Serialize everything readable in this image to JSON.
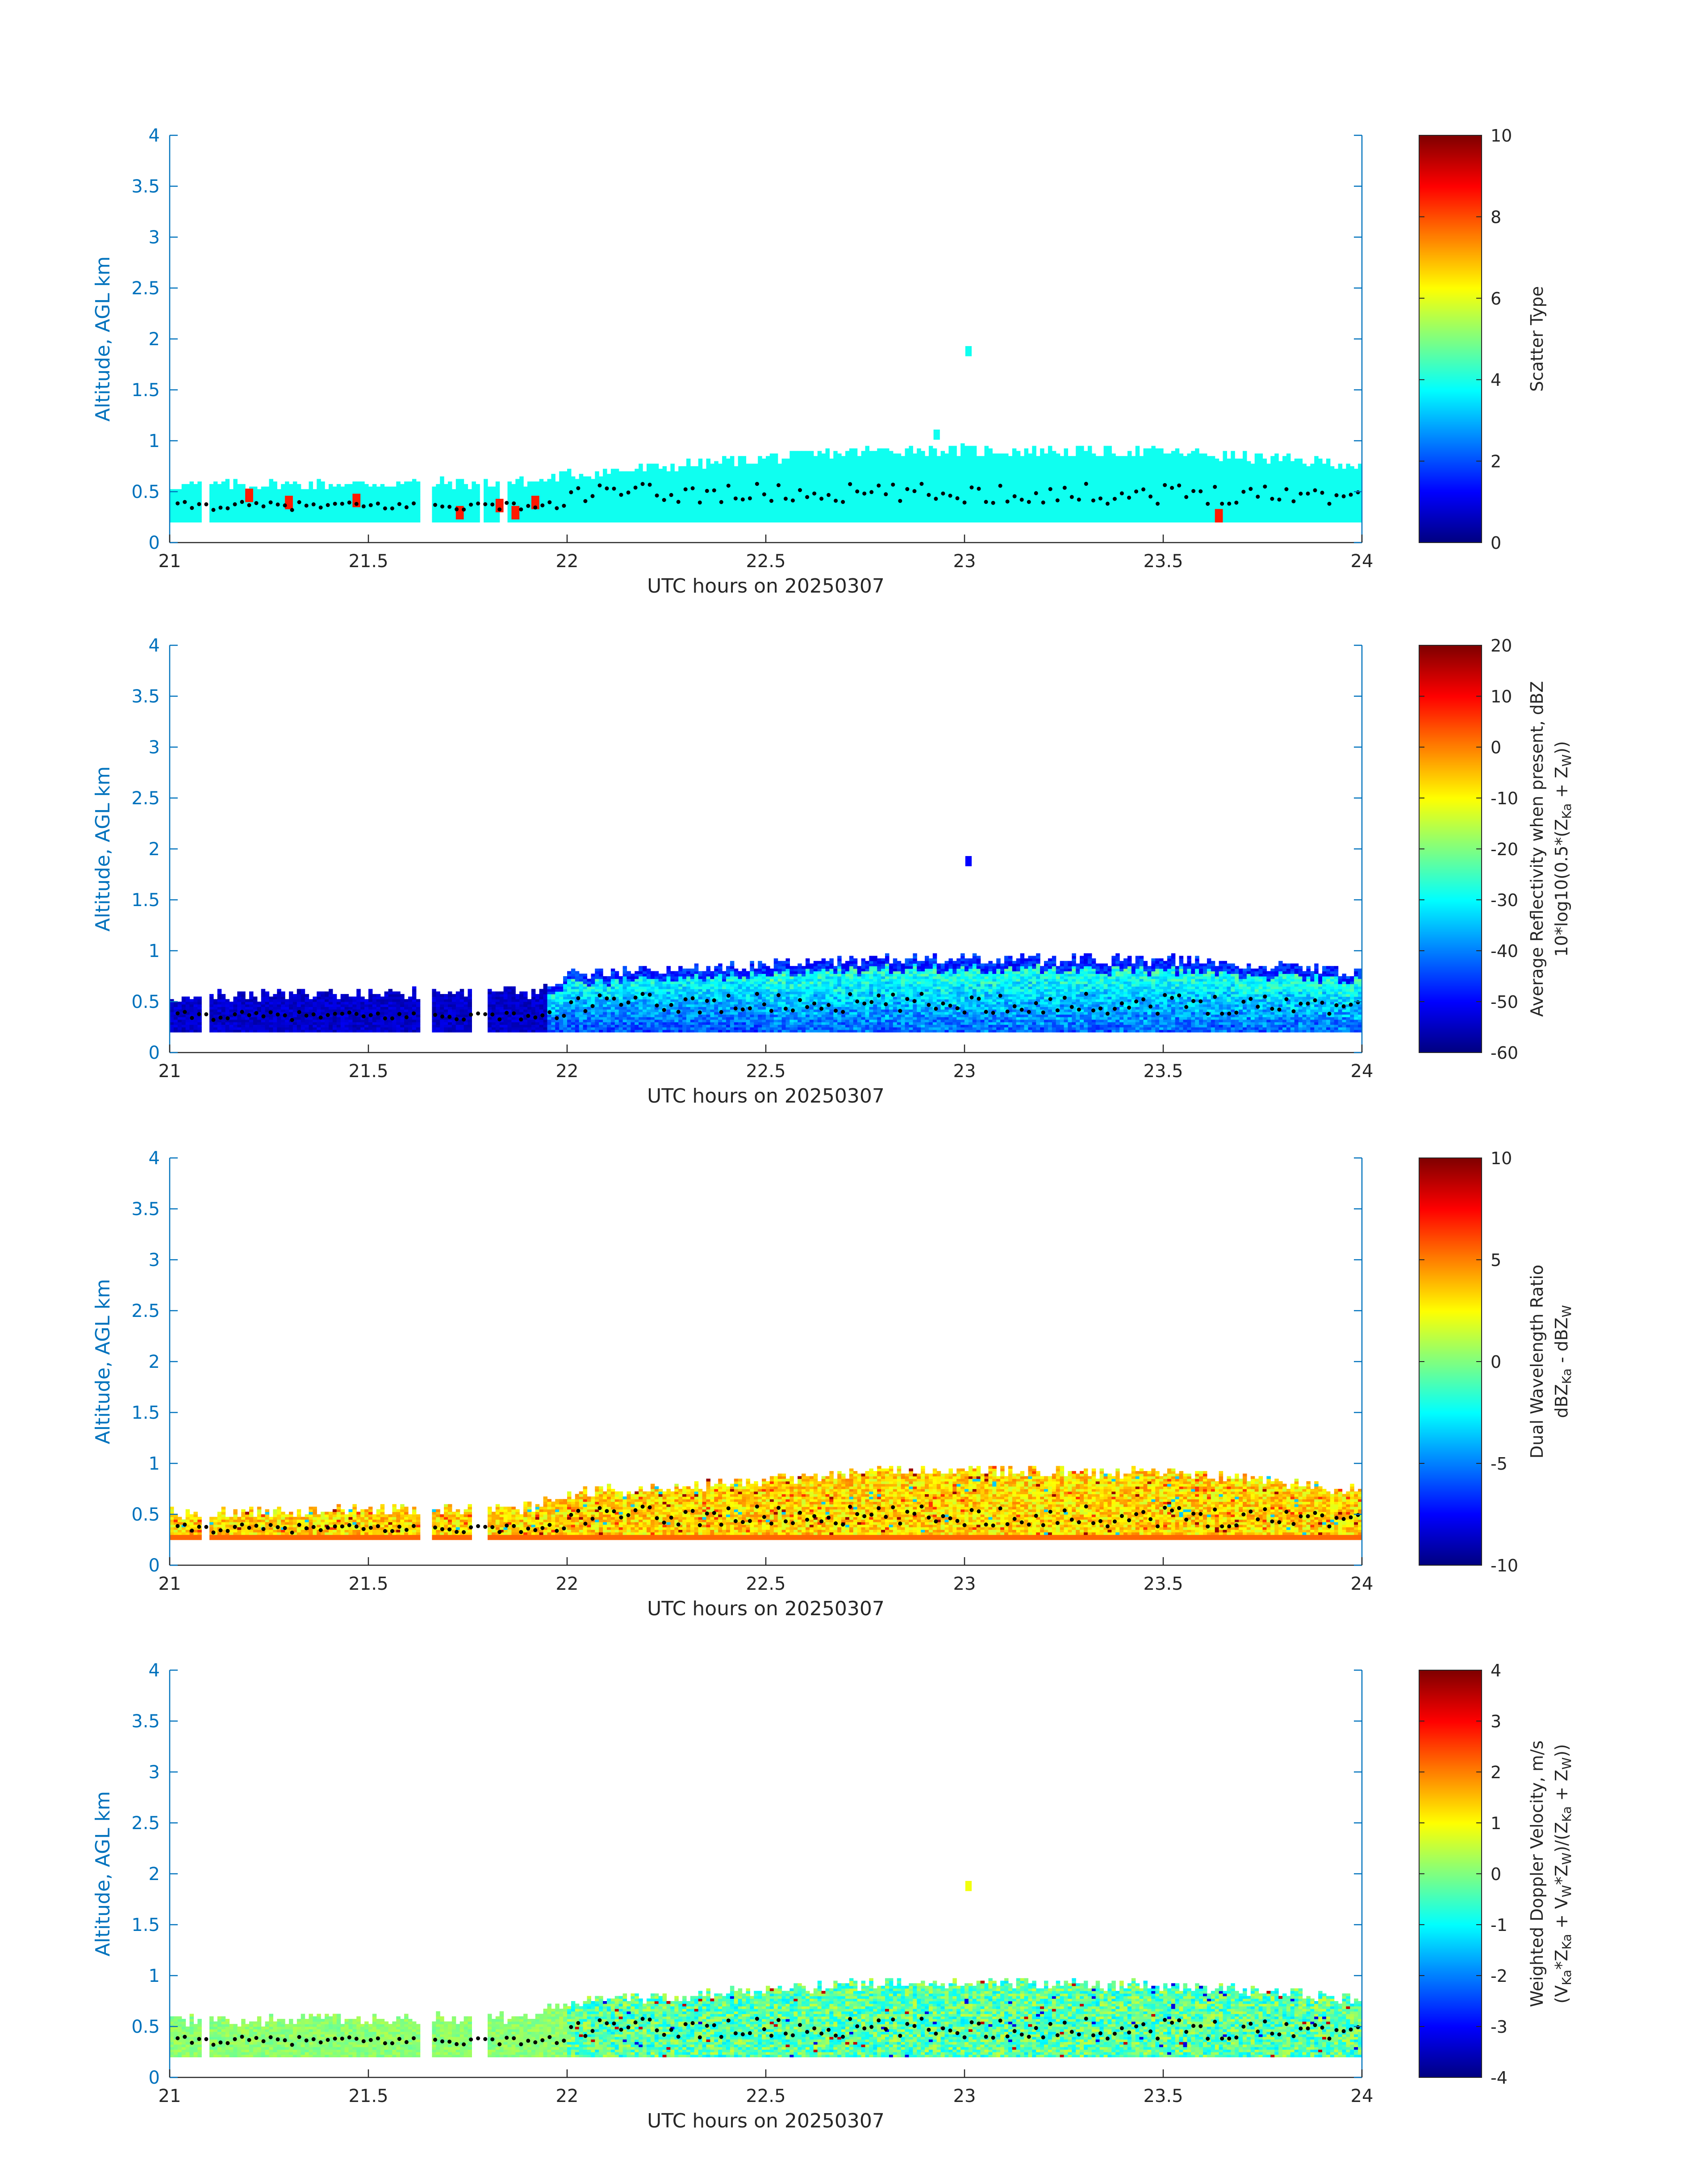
{
  "figure": {
    "shared_xlabel": "UTC hours on 20250307",
    "shared_ylabel": "Altitude, AGL km",
    "axis_color": "#0072BD",
    "dot_color": "#000000"
  },
  "chart_data": [
    {
      "type": "heatmap",
      "panel": "scatter-type",
      "xlabel": "UTC hours on 20250307",
      "ylabel": "Altitude, AGL km",
      "xlim": [
        21,
        24
      ],
      "ylim": [
        0,
        4
      ],
      "xticks": [
        21,
        21.5,
        22,
        22.5,
        23,
        23.5,
        24
      ],
      "yticks": [
        0,
        0.5,
        1,
        1.5,
        2,
        2.5,
        3,
        3.5,
        4
      ],
      "colorbar": {
        "label": "Scatter Type",
        "range": [
          0,
          10
        ],
        "ticks": [
          0,
          2,
          4,
          6,
          8,
          10
        ],
        "colormap": "jet"
      },
      "dominant_value": 3.9,
      "layer": {
        "base_km": 0.2,
        "top_km_by_hour": [
          [
            21,
            0.55
          ],
          [
            21.9,
            0.58
          ],
          [
            22.0,
            0.65
          ],
          [
            22.5,
            0.82
          ],
          [
            22.8,
            0.9
          ],
          [
            23.5,
            0.88
          ],
          [
            24,
            0.75
          ]
        ]
      },
      "gaps_hours": [
        [
          21.08,
          21.1
        ],
        [
          21.63,
          21.66
        ],
        [
          21.78,
          21.79
        ],
        [
          21.83,
          21.85
        ]
      ],
      "features": [
        {
          "hour": 23.01,
          "altitude_km": 1.87,
          "value": 3.9
        },
        {
          "hour": 22.93,
          "altitude_km": 1.05,
          "value": 3.9
        }
      ],
      "secondary_values": [
        {
          "hour": 21.2,
          "altitude_km": 0.45,
          "value": 8.5
        },
        {
          "hour": 21.3,
          "altitude_km": 0.38,
          "value": 8.5
        },
        {
          "hour": 21.47,
          "altitude_km": 0.4,
          "value": 8.5
        },
        {
          "hour": 21.73,
          "altitude_km": 0.28,
          "value": 8.5
        },
        {
          "hour": 21.83,
          "altitude_km": 0.35,
          "value": 8.5
        },
        {
          "hour": 21.87,
          "altitude_km": 0.28,
          "value": 8.5
        },
        {
          "hour": 21.92,
          "altitude_km": 0.38,
          "value": 8.5
        },
        {
          "hour": 23.64,
          "altitude_km": 0.25,
          "value": 8.5
        }
      ]
    },
    {
      "type": "heatmap",
      "panel": "reflectivity",
      "xlabel": "UTC hours on 20250307",
      "ylabel": "Altitude, AGL km",
      "xlim": [
        21,
        24
      ],
      "ylim": [
        0,
        4
      ],
      "xticks": [
        21,
        21.5,
        22,
        22.5,
        23,
        23.5,
        24
      ],
      "yticks": [
        0,
        0.5,
        1,
        1.5,
        2,
        2.5,
        3,
        3.5,
        4
      ],
      "colorbar": {
        "label": "Average Reflectivity when present, dBZ",
        "label2": "10*log10(0.5*(Z",
        "label2_sub1": "Ka",
        "label2_mid": " + Z",
        "label2_sub2": "W",
        "label2_end": "))",
        "range": [
          -60,
          20
        ],
        "ticks": [
          -60,
          -50,
          -40,
          -30,
          -20,
          -10,
          0,
          10,
          20
        ],
        "colormap": "jet"
      },
      "value_range_observed": [
        -60,
        -20
      ],
      "layer": {
        "base_km": 0.2,
        "top_km_by_hour": [
          [
            21,
            0.55
          ],
          [
            21.9,
            0.58
          ],
          [
            22.0,
            0.75
          ],
          [
            22.5,
            0.85
          ],
          [
            22.8,
            0.92
          ],
          [
            23.5,
            0.9
          ],
          [
            24,
            0.78
          ]
        ]
      },
      "features": [
        {
          "hour": 23.01,
          "altitude_km": 1.87,
          "value": -50
        }
      ]
    },
    {
      "type": "heatmap",
      "panel": "dual-wavelength-ratio",
      "xlabel": "UTC hours on 20250307",
      "ylabel": "Altitude, AGL km",
      "xlim": [
        21,
        24
      ],
      "ylim": [
        0,
        4
      ],
      "xticks": [
        21,
        21.5,
        22,
        22.5,
        23,
        23.5,
        24
      ],
      "yticks": [
        0,
        0.5,
        1,
        1.5,
        2,
        2.5,
        3,
        3.5,
        4
      ],
      "colorbar": {
        "label": "Dual Wavelength Ratio",
        "label2": "dBZ",
        "label2_sub1": "Ka",
        "label2_mid": " - dBZ",
        "label2_sub2": "W",
        "label2_end": "",
        "range": [
          -10,
          10
        ],
        "ticks": [
          -10,
          -5,
          0,
          5,
          10
        ],
        "colormap": "jet"
      },
      "value_range_observed": [
        0,
        6
      ],
      "layer": {
        "base_km": 0.25,
        "top_km_by_hour": [
          [
            21,
            0.5
          ],
          [
            21.9,
            0.55
          ],
          [
            22.0,
            0.7
          ],
          [
            22.5,
            0.82
          ],
          [
            22.8,
            0.92
          ],
          [
            23.5,
            0.9
          ],
          [
            24,
            0.72
          ]
        ]
      }
    },
    {
      "type": "heatmap",
      "panel": "doppler-velocity",
      "xlabel": "UTC hours on 20250307",
      "ylabel": "Altitude, AGL km",
      "xlim": [
        21,
        24
      ],
      "ylim": [
        0,
        4
      ],
      "xticks": [
        21,
        21.5,
        22,
        22.5,
        23,
        23.5,
        24
      ],
      "yticks": [
        0,
        0.5,
        1,
        1.5,
        2,
        2.5,
        3,
        3.5,
        4
      ],
      "colorbar": {
        "label": "Weighted Doppler Velocity, m/s",
        "label2": "(V",
        "label2_sub1": "Ka",
        "label2_mid": "*Z",
        "label2_sub2": "Ka",
        "label2_end": " + V",
        "label3_sub": "W",
        "label3_mid": "*Z",
        "label3_sub2": "W",
        "label3_end": ")/(Z",
        "label4_sub": "Ka",
        "label4_mid": " + Z",
        "label4_sub2": "W",
        "label4_end": "))",
        "range": [
          -4,
          4
        ],
        "ticks": [
          -4,
          -3,
          -2,
          -1,
          0,
          1,
          2,
          3,
          4
        ],
        "colormap": "jet"
      },
      "value_range_observed": [
        -2,
        1
      ],
      "layer": {
        "base_km": 0.2,
        "top_km_by_hour": [
          [
            21,
            0.55
          ],
          [
            21.9,
            0.58
          ],
          [
            22.0,
            0.72
          ],
          [
            22.5,
            0.85
          ],
          [
            22.8,
            0.92
          ],
          [
            23.5,
            0.9
          ],
          [
            24,
            0.75
          ]
        ]
      },
      "features": [
        {
          "hour": 23.01,
          "altitude_km": 1.87,
          "value": 0.9
        }
      ]
    }
  ]
}
